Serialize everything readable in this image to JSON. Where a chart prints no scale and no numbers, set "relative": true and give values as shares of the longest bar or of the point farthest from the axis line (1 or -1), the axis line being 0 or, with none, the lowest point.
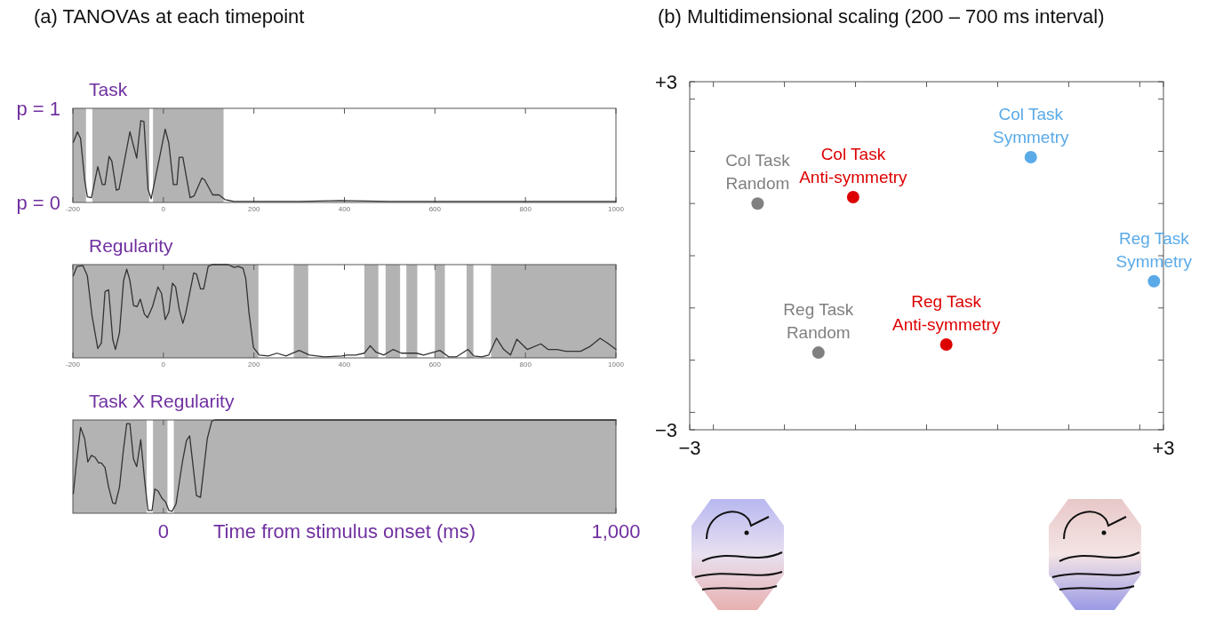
{
  "chart_data": [
    {
      "type": "line",
      "title": "(a) TANOVAs at each timepoint",
      "subtitle": "Task",
      "color": "#333333",
      "x": [
        -199,
        -190,
        -183,
        -174,
        -168,
        -159,
        -145,
        -135,
        -129,
        -120,
        -114,
        -104,
        -98,
        -74,
        -59,
        -50,
        -43,
        -34,
        -27,
        -8,
        4,
        12,
        22,
        30,
        35,
        43,
        59,
        68,
        85,
        91,
        109,
        123,
        136,
        156,
        200,
        300,
        391,
        500,
        600,
        700,
        800,
        900,
        1000
      ],
      "values": [
        0.64,
        0.75,
        0.68,
        0.24,
        0.06,
        0.05,
        0.38,
        0.19,
        0.19,
        0.49,
        0.44,
        0.13,
        0.14,
        0.75,
        0.47,
        0.87,
        0.86,
        0.14,
        0.04,
        0.49,
        0.78,
        0.63,
        0.19,
        0.19,
        0.48,
        0.48,
        0.05,
        0.07,
        0.26,
        0.24,
        0.08,
        0.08,
        0.03,
        0.01,
        0.01,
        0.01,
        0.02,
        0.01,
        0.01,
        0.01,
        0.01,
        0.01,
        0.01
      ],
      "bands": [
        {
          "axis": "x",
          "from": -200,
          "to": -171,
          "color": "#b3b3b3"
        },
        {
          "axis": "x",
          "from": -157,
          "to": -31,
          "color": "#b3b3b3"
        },
        {
          "axis": "x",
          "from": -23,
          "to": 133,
          "color": "#b3b3b3"
        }
      ],
      "xlim": [
        -200,
        1000
      ],
      "ylim": [
        0,
        1
      ],
      "xticks": [
        -200,
        0,
        200,
        400,
        600,
        800,
        1000
      ],
      "yticks": [
        {
          "value": 0,
          "label": "p = 0"
        },
        {
          "value": 1,
          "label": "p = 1"
        }
      ]
    },
    {
      "type": "line",
      "title": "Regularity",
      "color": "#333333",
      "x": [
        -199,
        -191,
        -178,
        -168,
        -158,
        -145,
        -137,
        -129,
        -121,
        -112,
        -106,
        -97,
        -88,
        -81,
        -74,
        -66,
        -58,
        -51,
        -42,
        -35,
        -24,
        -12,
        -4,
        4,
        12,
        20,
        27,
        35,
        43,
        49,
        67,
        73,
        82,
        89,
        99,
        107,
        143,
        156,
        166,
        176,
        182,
        189,
        199,
        212,
        232,
        251,
        271,
        300,
        323,
        356,
        395,
        405,
        425,
        444,
        457,
        470,
        487,
        508,
        526,
        559,
        575,
        611,
        631,
        647,
        673,
        686,
        703,
        719,
        736,
        752,
        767,
        781,
        804,
        834,
        850,
        870,
        889,
        922,
        942,
        965,
        981,
        1000
      ],
      "values": [
        0.88,
        0.98,
        0.99,
        0.88,
        0.46,
        0.1,
        0.16,
        0.71,
        0.73,
        0.2,
        0.09,
        0.27,
        0.83,
        0.95,
        0.83,
        0.56,
        0.55,
        0.63,
        0.47,
        0.43,
        0.55,
        0.76,
        0.69,
        0.41,
        0.49,
        0.8,
        0.76,
        0.52,
        0.37,
        0.47,
        0.91,
        0.9,
        0.74,
        0.74,
        0.98,
        1.0,
        1.0,
        0.97,
        0.98,
        0.96,
        0.85,
        0.49,
        0.11,
        0.03,
        0.02,
        0.05,
        0.02,
        0.08,
        0.03,
        0.01,
        0.02,
        0.03,
        0.03,
        0.05,
        0.13,
        0.06,
        0.03,
        0.09,
        0.05,
        0.05,
        0.03,
        0.08,
        0.01,
        0.01,
        0.09,
        0.02,
        0.01,
        0.03,
        0.21,
        0.09,
        0.03,
        0.2,
        0.09,
        0.15,
        0.09,
        0.09,
        0.07,
        0.07,
        0.12,
        0.21,
        0.16,
        0.09
      ],
      "bands": [
        {
          "axis": "x",
          "from": -200,
          "to": 210,
          "color": "#b3b3b3"
        },
        {
          "axis": "x",
          "from": 288,
          "to": 320,
          "color": "#b3b3b3"
        },
        {
          "axis": "x",
          "from": 444,
          "to": 475,
          "color": "#b3b3b3"
        },
        {
          "axis": "x",
          "from": 491,
          "to": 523,
          "color": "#b3b3b3"
        },
        {
          "axis": "x",
          "from": 537,
          "to": 561,
          "color": "#b3b3b3"
        },
        {
          "axis": "x",
          "from": 600,
          "to": 622,
          "color": "#b3b3b3"
        },
        {
          "axis": "x",
          "from": 670,
          "to": 685,
          "color": "#b3b3b3"
        },
        {
          "axis": "x",
          "from": 724,
          "to": 1000,
          "color": "#b3b3b3"
        }
      ],
      "xlim": [
        -200,
        1000
      ],
      "relative": true,
      "xticks": [
        -200,
        0,
        200,
        400,
        600,
        800,
        1000
      ],
      "tick_labels": "x"
    },
    {
      "type": "line",
      "title": "Task X Regularity",
      "xlabel": "Time from stimulus onset (ms)",
      "color": "#333333",
      "x": [
        -199,
        -193,
        -183,
        -174,
        -167,
        -159,
        -151,
        -143,
        -137,
        -129,
        -121,
        -112,
        -106,
        -97,
        -89,
        -81,
        -74,
        -66,
        -59,
        -50,
        -42,
        -34,
        -25,
        -19,
        -12,
        -3,
        5,
        12,
        19,
        28,
        42,
        51,
        58,
        73,
        82,
        97,
        107,
        114,
        400,
        700,
        1000
      ],
      "values": [
        0.21,
        0.5,
        0.92,
        0.8,
        0.55,
        0.62,
        0.6,
        0.54,
        0.54,
        0.49,
        0.28,
        0.11,
        0.1,
        0.28,
        0.65,
        0.96,
        0.96,
        0.58,
        0.5,
        0.79,
        0.38,
        0.03,
        0.03,
        0.26,
        0.24,
        0.16,
        0.12,
        0.03,
        0.02,
        0.1,
        0.55,
        0.78,
        0.83,
        0.19,
        0.17,
        0.8,
        0.99,
        1.0,
        1.0,
        1.0,
        1.0
      ],
      "bands": [
        {
          "axis": "x",
          "from": -200,
          "to": -37,
          "color": "#b3b3b3"
        },
        {
          "axis": "x",
          "from": -23,
          "to": 9,
          "color": "#b3b3b3"
        },
        {
          "axis": "x",
          "from": 23,
          "to": 1000,
          "color": "#b3b3b3"
        }
      ],
      "xlim": [
        -200,
        1000
      ],
      "relative": true,
      "xticks": [
        {
          "value": 0,
          "label": "0"
        },
        {
          "value": 1000,
          "label": "1,000"
        }
      ],
      "tick_labels": "x"
    },
    {
      "type": "scatter",
      "title": "(b) Multidimensional scaling (200 – 700 ms interval)",
      "marker": "circle",
      "series": [
        {
          "color": "#808080",
          "x": [
            -2.14,
            -1.37
          ],
          "values": [
            0.9,
            -1.67
          ],
          "value_labels": [
            "Col Task\nRandom",
            "Reg Task\nRandom"
          ]
        },
        {
          "color": "#dd0000",
          "x": [
            -0.93,
            0.25
          ],
          "values": [
            1.01,
            -1.53
          ],
          "value_labels": [
            "Col Task\nAnti-symmetry",
            "Reg Task\nAnti-symmetry"
          ]
        },
        {
          "color": "#5aaae8",
          "x": [
            1.32,
            2.88
          ],
          "values": [
            1.7,
            -0.44
          ],
          "value_labels": [
            "Col Task\nSymmetry",
            "Reg Task\nSymmetry"
          ]
        }
      ],
      "xlim": [
        -3,
        3
      ],
      "ylim": [
        -3,
        3
      ],
      "xticks": [
        {
          "value": -3,
          "label": "−3"
        },
        {
          "value": -2.7,
          "label": null
        },
        {
          "value": -1.8,
          "label": null
        },
        {
          "value": -0.9,
          "label": null
        },
        {
          "value": 0,
          "label": null
        },
        {
          "value": 0.9,
          "label": null
        },
        {
          "value": 1.8,
          "label": null
        },
        {
          "value": 2.7,
          "label": null
        },
        {
          "value": 3,
          "label": "+3"
        }
      ],
      "yticks": [
        {
          "value": -3,
          "label": "−3"
        },
        {
          "value": -2.7,
          "label": null
        },
        {
          "value": -1.8,
          "label": null
        },
        {
          "value": -0.9,
          "label": null
        },
        {
          "value": 0,
          "label": null
        },
        {
          "value": 0.9,
          "label": null
        },
        {
          "value": 1.8,
          "label": null
        },
        {
          "value": 2.7,
          "label": null
        },
        {
          "value": 3,
          "label": "+3"
        }
      ]
    }
  ]
}
